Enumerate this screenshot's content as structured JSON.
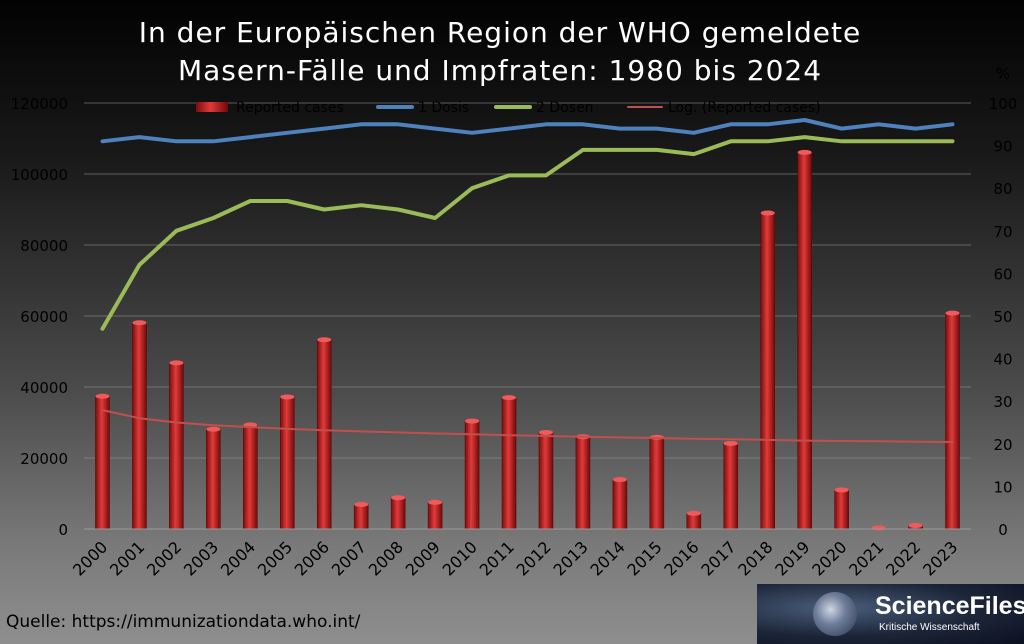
{
  "header": {
    "title_line1": "In der Europäischen Region der WHO gemeldete",
    "title_line2": "Masern-Fälle und Impfraten: 1980 bis 2024"
  },
  "footer": {
    "source": "Quelle: https://immunizationdata.who.int/"
  },
  "logo": {
    "name": "ScienceFiles.org",
    "tagline": "Kritische Wissenschaft"
  },
  "chart_data": {
    "type": "bar",
    "title": "In der Europäischen Region der WHO gemeldete Masern-Fälle und Impfraten: 1980 bis 2024",
    "categories": [
      "2000",
      "2001",
      "2002",
      "2003",
      "2004",
      "2005",
      "2006",
      "2007",
      "2008",
      "2009",
      "2010",
      "2011",
      "2012",
      "2013",
      "2014",
      "2015",
      "2016",
      "2017",
      "2018",
      "2019",
      "2020",
      "2021",
      "2022",
      "2023"
    ],
    "y_left": {
      "min": 0,
      "max": 120000,
      "ticks": [
        0,
        20000,
        40000,
        60000,
        80000,
        100000,
        120000
      ]
    },
    "y_right": {
      "label": "%",
      "min": 0,
      "max": 100,
      "ticks": [
        0,
        10,
        20,
        30,
        40,
        50,
        60,
        70,
        80,
        90,
        100
      ]
    },
    "legend_position": "top",
    "grid": true,
    "series": [
      {
        "name": "Reported cases",
        "kind": "bar",
        "axis": "left",
        "color": "#c81e1e",
        "values": [
          37400,
          58100,
          46800,
          28100,
          29300,
          37200,
          53300,
          6900,
          8800,
          7500,
          30400,
          37000,
          27200,
          26000,
          13900,
          25800,
          4400,
          24100,
          89000,
          106100,
          11000,
          200,
          1000,
          60800
        ]
      },
      {
        "name": "1 Dosis",
        "kind": "line",
        "axis": "right",
        "color": "#4f81bd",
        "values": [
          91,
          92,
          91,
          91,
          92,
          93,
          94,
          95,
          95,
          94,
          93,
          94,
          95,
          95,
          94,
          94,
          93,
          95,
          95,
          96,
          94,
          95,
          94,
          95
        ]
      },
      {
        "name": "2 Dosen",
        "kind": "line",
        "axis": "right",
        "color": "#9bbb59",
        "values": [
          47,
          62,
          70,
          73,
          77,
          77,
          75,
          76,
          75,
          73,
          80,
          83,
          83,
          89,
          89,
          89,
          88,
          91,
          91,
          92,
          91,
          91,
          91,
          91
        ]
      },
      {
        "name": "Log. (Reported cases)",
        "kind": "trendline",
        "axis": "left",
        "color": "#c0504d",
        "values": [
          33500,
          31200,
          30000,
          29200,
          28700,
          28200,
          27800,
          27500,
          27200,
          26900,
          26700,
          26400,
          26200,
          26000,
          25800,
          25600,
          25400,
          25300,
          25100,
          24900,
          24800,
          24700,
          24600,
          24500
        ]
      }
    ]
  }
}
